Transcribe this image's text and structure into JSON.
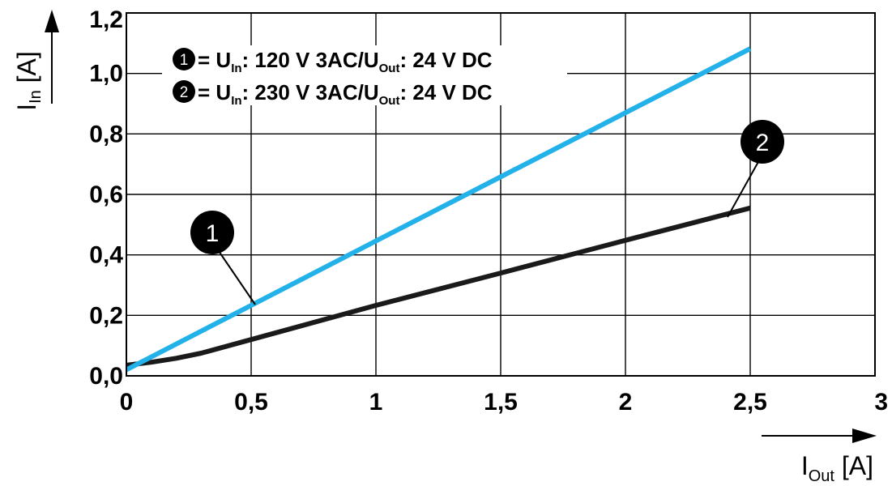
{
  "chart_data": {
    "type": "line",
    "xlim": [
      0,
      3
    ],
    "ylim": [
      0,
      1.2
    ],
    "x_ticks": [
      "0",
      "0,5",
      "1",
      "1,5",
      "2",
      "2,5",
      "3"
    ],
    "y_ticks": [
      "0,0",
      "0,2",
      "0,4",
      "0,6",
      "0,8",
      "1,0",
      "1,2"
    ],
    "grid": true,
    "xlabel": {
      "main": "I",
      "sub": "Out",
      "unit": " [A]"
    },
    "ylabel": {
      "main": "I",
      "sub": "In",
      "unit": " [A]"
    },
    "legend": [
      {
        "marker": "1",
        "prefix": "= U",
        "sub1": "In",
        "mid": ": 120 V 3AC/U",
        "sub2": "Out",
        "suffix": ": 24 V DC"
      },
      {
        "marker": "2",
        "prefix": "= U",
        "sub1": "In",
        "mid": ": 230 V 3AC/U",
        "sub2": "Out",
        "suffix": ": 24 V DC"
      }
    ],
    "series": [
      {
        "marker": "1",
        "color": "#22b1e8",
        "x": [
          0,
          0.5,
          1.0,
          1.5,
          2.0,
          2.5
        ],
        "y": [
          0.02,
          0.233,
          0.446,
          0.658,
          0.87,
          1.082
        ]
      },
      {
        "marker": "2",
        "color": "#1a1a1a",
        "x": [
          0,
          0.1,
          0.2,
          0.3,
          0.5,
          1.0,
          1.5,
          2.0,
          2.5
        ],
        "y": [
          0.035,
          0.045,
          0.058,
          0.075,
          0.12,
          0.233,
          0.34,
          0.448,
          0.555
        ]
      }
    ]
  }
}
